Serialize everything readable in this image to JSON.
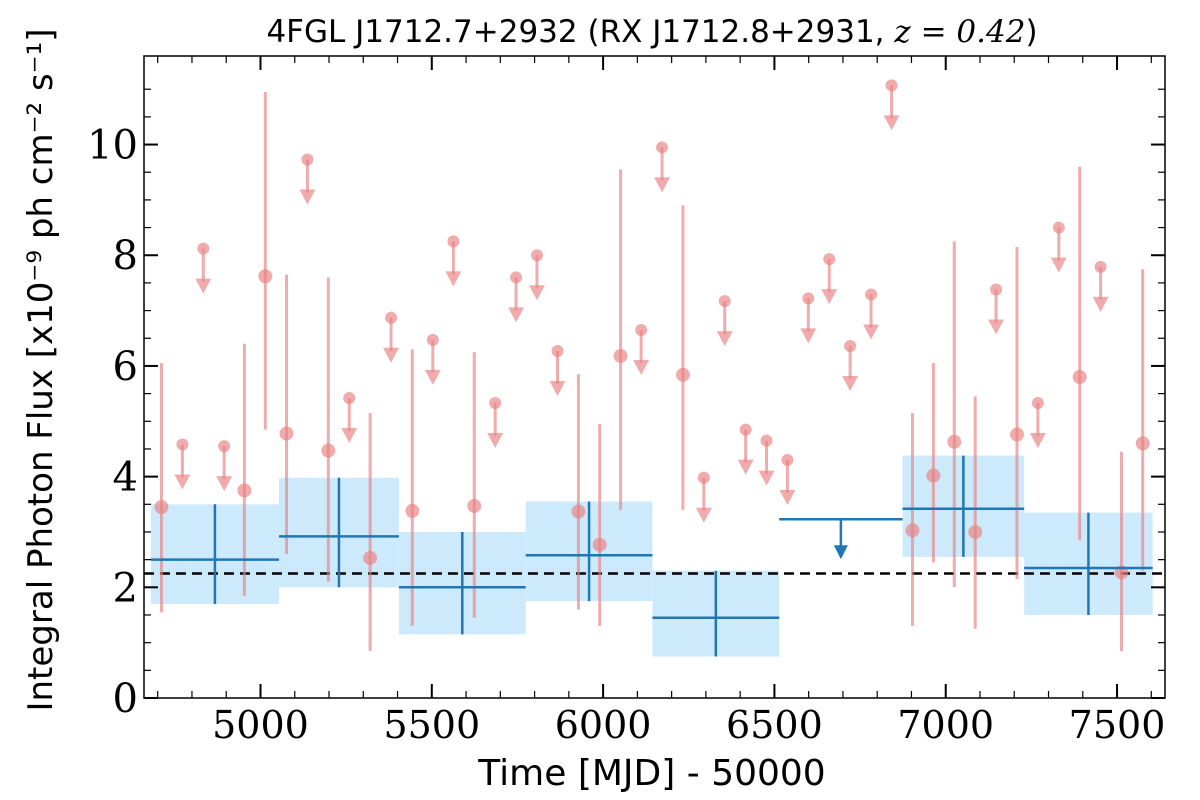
{
  "chart_data": {
    "type": "scatter",
    "title": {
      "prefix": "4FGL J1712.7+2932 (RX J1712.8+2931, ",
      "math": "z = 0.42",
      "suffix": ")"
    },
    "xlabel": "Time [MJD] - 50000",
    "ylabel": "Integral Photon Flux [x10⁻⁹ ph cm⁻² s⁻¹]",
    "xlim": [
      4660,
      7640
    ],
    "ylim": [
      0,
      11.6
    ],
    "x_major_ticks": [
      5000,
      5500,
      6000,
      6500,
      7000,
      7500
    ],
    "y_major_ticks": [
      0,
      2,
      4,
      6,
      8,
      10
    ],
    "x_tick_labels": [
      "5000",
      "5500",
      "6000",
      "6500",
      "7000",
      "7500"
    ],
    "y_tick_labels": [
      "0",
      "2",
      "4",
      "6",
      "8",
      "10"
    ],
    "mean_flux": 2.25,
    "colors": {
      "short_bins": "#e88080",
      "long_bins": "#1f77b4",
      "long_bins_band": "#cdeafc",
      "mean_line": "#000000"
    },
    "series": [
      {
        "role": "short time bins",
        "detections": [
          {
            "x": 4711,
            "y": 3.45,
            "lo": 1.55,
            "hi": 6.05
          },
          {
            "x": 4953,
            "y": 3.75,
            "lo": 1.85,
            "hi": 6.4
          },
          {
            "x": 5014,
            "y": 7.62,
            "lo": 4.85,
            "hi": 10.95
          },
          {
            "x": 5076,
            "y": 4.78,
            "lo": 2.6,
            "hi": 7.65
          },
          {
            "x": 5198,
            "y": 4.47,
            "lo": 2.1,
            "hi": 7.6
          },
          {
            "x": 5320,
            "y": 2.53,
            "lo": 0.85,
            "hi": 5.15
          },
          {
            "x": 5443,
            "y": 3.38,
            "lo": 1.3,
            "hi": 6.3
          },
          {
            "x": 5624,
            "y": 3.47,
            "lo": 1.45,
            "hi": 6.25
          },
          {
            "x": 5928,
            "y": 3.37,
            "lo": 1.6,
            "hi": 5.85
          },
          {
            "x": 5990,
            "y": 2.77,
            "lo": 1.3,
            "hi": 4.95
          },
          {
            "x": 6051,
            "y": 6.18,
            "lo": 3.4,
            "hi": 9.55
          },
          {
            "x": 6233,
            "y": 5.84,
            "lo": 3.4,
            "hi": 8.9
          },
          {
            "x": 6903,
            "y": 3.03,
            "lo": 1.3,
            "hi": 5.15
          },
          {
            "x": 6964,
            "y": 4.02,
            "lo": 2.45,
            "hi": 6.05
          },
          {
            "x": 7025,
            "y": 4.63,
            "lo": 2.0,
            "hi": 8.25
          },
          {
            "x": 7086,
            "y": 3.0,
            "lo": 1.25,
            "hi": 5.45
          },
          {
            "x": 7208,
            "y": 4.76,
            "lo": 2.15,
            "hi": 8.15
          },
          {
            "x": 7391,
            "y": 5.8,
            "lo": 2.85,
            "hi": 9.6
          },
          {
            "x": 7513,
            "y": 2.27,
            "lo": 0.85,
            "hi": 4.45
          },
          {
            "x": 7575,
            "y": 4.6,
            "lo": 2.3,
            "hi": 7.75
          }
        ],
        "upper_limits": [
          {
            "x": 4772,
            "y": 4.58
          },
          {
            "x": 4833,
            "y": 8.12
          },
          {
            "x": 4894,
            "y": 4.55
          },
          {
            "x": 5137,
            "y": 9.73
          },
          {
            "x": 5259,
            "y": 5.42
          },
          {
            "x": 5381,
            "y": 6.87
          },
          {
            "x": 5503,
            "y": 6.47
          },
          {
            "x": 5563,
            "y": 8.25
          },
          {
            "x": 5685,
            "y": 5.33
          },
          {
            "x": 5746,
            "y": 7.6
          },
          {
            "x": 5807,
            "y": 8.0
          },
          {
            "x": 5867,
            "y": 6.27
          },
          {
            "x": 6111,
            "y": 6.65
          },
          {
            "x": 6172,
            "y": 9.95
          },
          {
            "x": 6294,
            "y": 3.98
          },
          {
            "x": 6355,
            "y": 7.17
          },
          {
            "x": 6416,
            "y": 4.85
          },
          {
            "x": 6477,
            "y": 4.65
          },
          {
            "x": 6538,
            "y": 4.3
          },
          {
            "x": 6599,
            "y": 7.22
          },
          {
            "x": 6660,
            "y": 7.93
          },
          {
            "x": 6721,
            "y": 6.36
          },
          {
            "x": 6782,
            "y": 7.29
          },
          {
            "x": 6842,
            "y": 11.07
          },
          {
            "x": 7147,
            "y": 7.38
          },
          {
            "x": 7269,
            "y": 5.33
          },
          {
            "x": 7330,
            "y": 8.5
          },
          {
            "x": 7452,
            "y": 7.79
          }
        ]
      },
      {
        "role": "long time bins",
        "detections": [
          {
            "x0": 4680,
            "x1": 5054,
            "y": 2.5,
            "lo": 1.7,
            "hi": 3.5
          },
          {
            "x0": 5054,
            "x1": 5404,
            "y": 2.92,
            "lo": 2.0,
            "hi": 3.98
          },
          {
            "x0": 5404,
            "x1": 5774,
            "y": 2.0,
            "lo": 1.15,
            "hi": 3.0
          },
          {
            "x0": 5774,
            "x1": 6144,
            "y": 2.58,
            "lo": 1.75,
            "hi": 3.55
          },
          {
            "x0": 6144,
            "x1": 6514,
            "y": 1.45,
            "lo": 0.75,
            "hi": 2.3
          },
          {
            "x0": 6874,
            "x1": 7229,
            "y": 3.42,
            "lo": 2.55,
            "hi": 4.38
          },
          {
            "x0": 7229,
            "x1": 7604,
            "y": 2.35,
            "lo": 1.5,
            "hi": 3.35
          }
        ],
        "upper_limits": [
          {
            "x0": 6514,
            "x1": 6874,
            "y": 3.23
          }
        ]
      }
    ]
  }
}
